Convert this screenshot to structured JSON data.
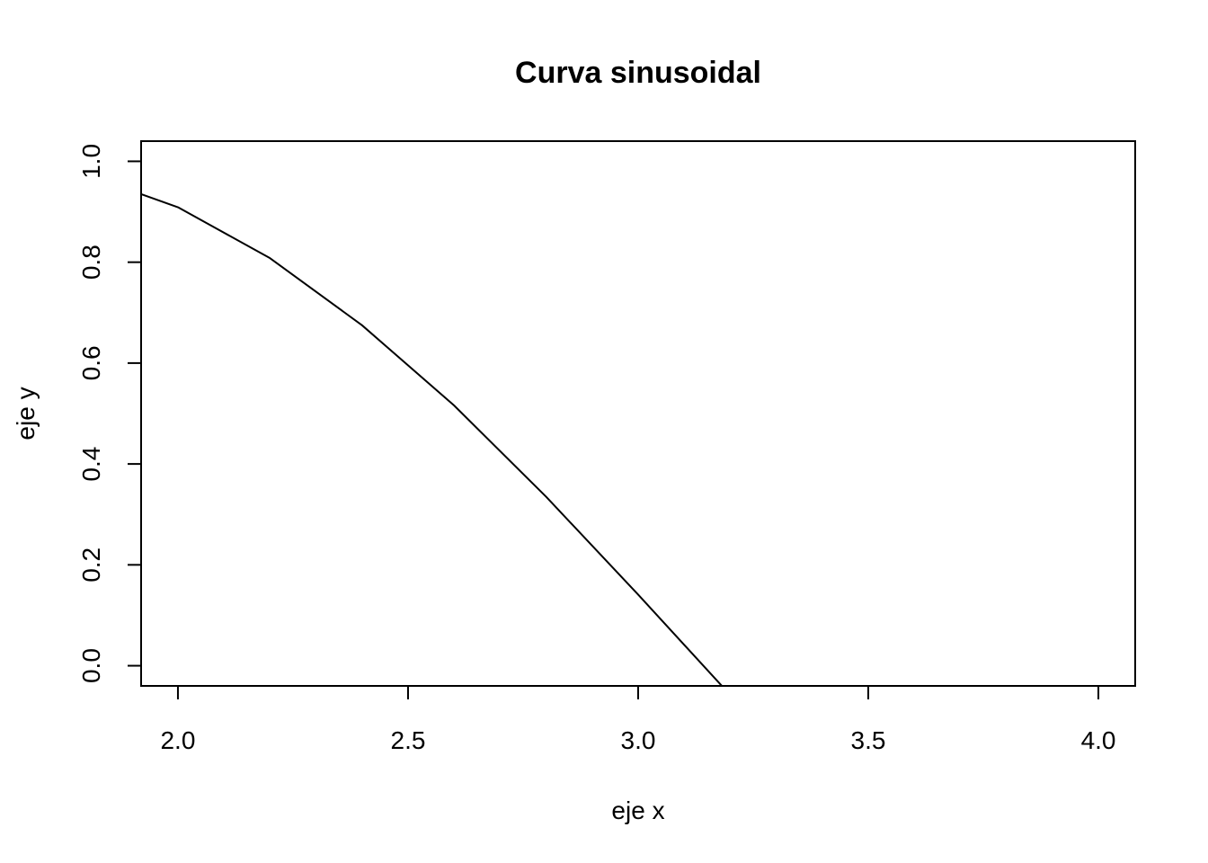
{
  "chart_data": {
    "type": "line",
    "title": "Curva sinusoidal",
    "xlabel": "eje x",
    "ylabel": "eje y",
    "xlim": [
      1.92,
      4.08
    ],
    "ylim": [
      -0.04,
      1.04
    ],
    "x_ticks": [
      2.0,
      2.5,
      3.0,
      3.5,
      4.0
    ],
    "x_tick_labels": [
      "2.0",
      "2.5",
      "3.0",
      "3.5",
      "4.0"
    ],
    "y_ticks": [
      0.0,
      0.2,
      0.4,
      0.6,
      0.8,
      1.0
    ],
    "y_tick_labels": [
      "0.0",
      "0.2",
      "0.4",
      "0.6",
      "0.8",
      "1.0"
    ],
    "grid": false,
    "series": [
      {
        "x": [
          1.8,
          2.0,
          2.2,
          2.4,
          2.6,
          2.8,
          3.0,
          3.2
        ],
        "y": [
          0.974,
          0.909,
          0.808,
          0.675,
          0.516,
          0.335,
          0.141,
          -0.058
        ],
        "color": "#000000"
      }
    ]
  }
}
